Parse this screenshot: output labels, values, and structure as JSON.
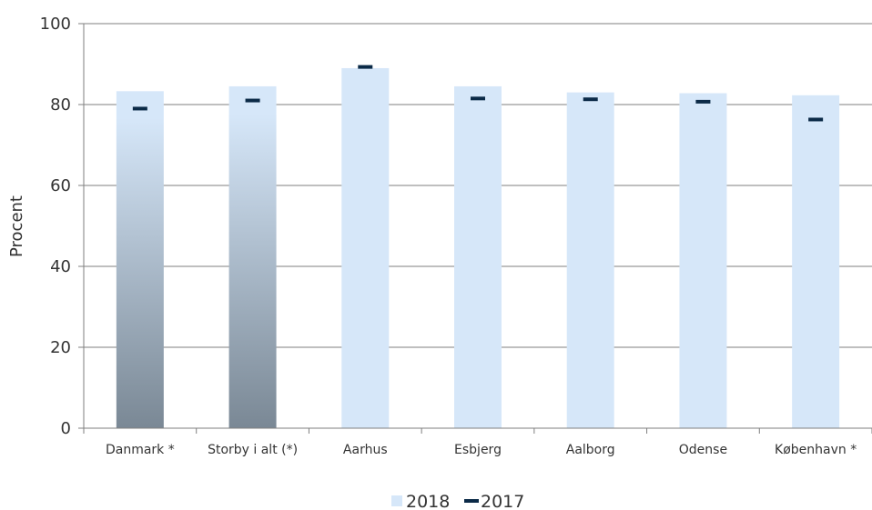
{
  "chart_data": {
    "type": "bar",
    "ylabel": "Procent",
    "ylim": [
      0,
      100
    ],
    "yticks": [
      0,
      20,
      40,
      60,
      80,
      100
    ],
    "categories": [
      "Danmark *",
      "Storby i alt (*)",
      "Aarhus",
      "Esbjerg",
      "Aalborg",
      "Odense",
      "København *"
    ],
    "highlighted_categories": [
      "Danmark *",
      "Storby i alt (*)"
    ],
    "series": [
      {
        "name": "2018",
        "mark": "bar",
        "values": [
          83.3,
          84.5,
          89.0,
          84.5,
          83.0,
          82.8,
          82.3
        ]
      },
      {
        "name": "2017",
        "mark": "dash",
        "values": [
          79.0,
          81.0,
          89.3,
          81.5,
          81.3,
          80.7,
          76.3
        ]
      }
    ],
    "legend_position": "bottom-center",
    "grid": true,
    "colors": {
      "bar": "#d6e7f9",
      "bar_highlight_top": "#d6e7f9",
      "bar_highlight_bottom": "#7a8895",
      "marker": "#0b2a47",
      "gridline": "#7f7f7f",
      "axis": "#7f7f7f"
    }
  }
}
